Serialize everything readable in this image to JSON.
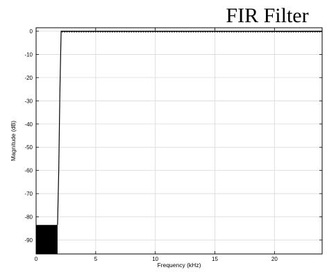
{
  "chart_data": {
    "type": "line",
    "title": "FIR Filter",
    "xlabel": "Frequency (kHz)",
    "ylabel": "Magnitude (dB)",
    "xlim": [
      0,
      24
    ],
    "ylim": [
      -96,
      1.5
    ],
    "xticks": [
      0,
      5,
      10,
      15,
      20
    ],
    "yticks": [
      0,
      -10,
      -20,
      -30,
      -40,
      -50,
      -60,
      -70,
      -80,
      -90
    ],
    "grid": true,
    "series": [
      {
        "x": [
          0,
          1.8,
          1.9,
          2.0,
          2.1,
          24
        ],
        "y": [
          -83.5,
          -83.5,
          -60,
          -25,
          0,
          0
        ],
        "stopband": {
          "x_start": 0,
          "x_end": 1.8,
          "y_top": -83.5
        },
        "passband": {
          "x_start": 2.1,
          "x_end": 24,
          "ripple_db": 0.4,
          "ripple_step_khz": 0.2
        }
      }
    ]
  }
}
